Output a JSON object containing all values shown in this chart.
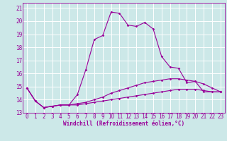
{
  "xlabel": "Windchill (Refroidissement éolien,°C)",
  "background_color": "#cce8e8",
  "grid_color": "#ffffff",
  "line_color": "#990099",
  "xlim": [
    -0.5,
    23.5
  ],
  "ylim": [
    13,
    21.4
  ],
  "xticks": [
    0,
    1,
    2,
    3,
    4,
    5,
    6,
    7,
    8,
    9,
    10,
    11,
    12,
    13,
    14,
    15,
    16,
    17,
    18,
    19,
    20,
    21,
    22,
    23
  ],
  "yticks": [
    13,
    14,
    15,
    16,
    17,
    18,
    19,
    20,
    21
  ],
  "curve1_x": [
    0,
    1,
    2,
    3,
    4,
    5,
    6,
    7,
    8,
    9,
    10,
    11,
    12,
    13,
    14,
    15,
    16,
    17,
    18,
    19,
    20,
    21,
    22,
    23
  ],
  "curve1_y": [
    14.9,
    13.9,
    13.4,
    13.5,
    13.6,
    13.6,
    14.4,
    16.3,
    18.6,
    18.9,
    20.7,
    20.6,
    19.7,
    19.6,
    19.9,
    19.4,
    17.3,
    16.5,
    16.4,
    15.3,
    15.4,
    14.6,
    14.6,
    14.6
  ],
  "curve2_x": [
    0,
    1,
    2,
    3,
    4,
    5,
    6,
    7,
    8,
    9,
    10,
    11,
    12,
    13,
    14,
    15,
    16,
    17,
    18,
    19,
    20,
    21,
    22,
    23
  ],
  "curve2_y": [
    14.9,
    13.9,
    13.4,
    13.5,
    13.6,
    13.6,
    13.7,
    13.8,
    14.0,
    14.2,
    14.5,
    14.7,
    14.9,
    15.1,
    15.3,
    15.4,
    15.5,
    15.6,
    15.6,
    15.5,
    15.4,
    15.2,
    14.9,
    14.6
  ],
  "curve3_x": [
    0,
    1,
    2,
    3,
    4,
    5,
    6,
    7,
    8,
    9,
    10,
    11,
    12,
    13,
    14,
    15,
    16,
    17,
    18,
    19,
    20,
    21,
    22,
    23
  ],
  "curve3_y": [
    14.9,
    13.9,
    13.4,
    13.5,
    13.6,
    13.6,
    13.6,
    13.7,
    13.8,
    13.9,
    14.0,
    14.1,
    14.2,
    14.3,
    14.4,
    14.5,
    14.6,
    14.7,
    14.8,
    14.8,
    14.8,
    14.7,
    14.6,
    14.6
  ],
  "xlabel_fontsize": 5.5,
  "tick_fontsize": 5.5,
  "marker_size": 1.8,
  "line_width": 0.8
}
